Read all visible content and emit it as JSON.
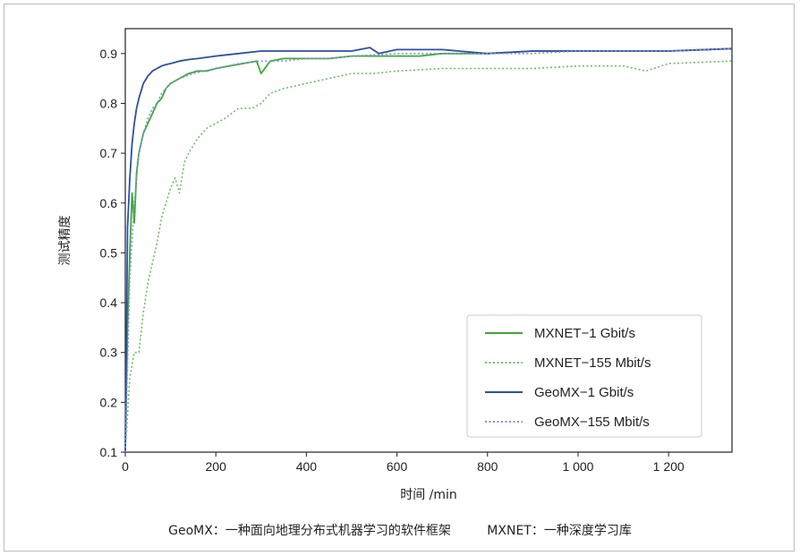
{
  "chart_data": {
    "type": "line",
    "xlabel": "时间 /min",
    "ylabel": "测试精度",
    "xlim": [
      0,
      1340
    ],
    "ylim": [
      0.1,
      0.95
    ],
    "xticks": [
      0,
      200,
      400,
      600,
      800,
      1000,
      1200
    ],
    "xtick_labels": [
      "0",
      "200",
      "400",
      "600",
      "800",
      "1 000",
      "1 200"
    ],
    "yticks": [
      0.1,
      0.2,
      0.3,
      0.4,
      0.5,
      0.6,
      0.7,
      0.8,
      0.9
    ],
    "ytick_labels": [
      "0.1",
      "0.2",
      "0.3",
      "0.4",
      "0.5",
      "0.6",
      "0.7",
      "0.8",
      "0.9"
    ],
    "grid": false,
    "legend_position": "lower-right",
    "series": [
      {
        "name": "MXNET−1 Gbit/s",
        "color": "#3aaa35",
        "style": "solid",
        "x": [
          0,
          5,
          10,
          15,
          20,
          25,
          30,
          40,
          50,
          60,
          70,
          80,
          90,
          100,
          120,
          140,
          160,
          180,
          200,
          230,
          260,
          290,
          300,
          320,
          350,
          400,
          450,
          500,
          550,
          600,
          650,
          700,
          750,
          800,
          900,
          1000,
          1100,
          1200,
          1340
        ],
        "y": [
          0.1,
          0.35,
          0.5,
          0.62,
          0.56,
          0.66,
          0.7,
          0.74,
          0.76,
          0.78,
          0.8,
          0.81,
          0.83,
          0.84,
          0.85,
          0.86,
          0.865,
          0.865,
          0.87,
          0.875,
          0.88,
          0.885,
          0.86,
          0.885,
          0.89,
          0.89,
          0.89,
          0.895,
          0.895,
          0.895,
          0.895,
          0.9,
          0.9,
          0.9,
          0.905,
          0.905,
          0.905,
          0.905,
          0.91
        ]
      },
      {
        "name": "MXNET−155 Mbit/s",
        "color": "#6cbf62",
        "style": "dotted",
        "x": [
          0,
          10,
          20,
          30,
          40,
          50,
          60,
          70,
          80,
          90,
          100,
          110,
          120,
          130,
          140,
          160,
          180,
          200,
          220,
          250,
          280,
          300,
          320,
          350,
          400,
          450,
          500,
          550,
          600,
          700,
          800,
          900,
          1000,
          1100,
          1150,
          1200,
          1340
        ],
        "y": [
          0.1,
          0.25,
          0.3,
          0.3,
          0.38,
          0.44,
          0.48,
          0.52,
          0.57,
          0.6,
          0.63,
          0.65,
          0.62,
          0.68,
          0.7,
          0.73,
          0.75,
          0.76,
          0.77,
          0.79,
          0.79,
          0.8,
          0.82,
          0.83,
          0.84,
          0.85,
          0.86,
          0.86,
          0.865,
          0.87,
          0.87,
          0.87,
          0.875,
          0.875,
          0.865,
          0.88,
          0.885
        ]
      },
      {
        "name": "GeoMX−1 Gbit/s",
        "color": "#2e4fa6",
        "style": "solid",
        "x": [
          0,
          5,
          10,
          15,
          20,
          25,
          30,
          40,
          50,
          60,
          70,
          80,
          90,
          100,
          120,
          140,
          160,
          200,
          250,
          300,
          350,
          400,
          450,
          500,
          540,
          560,
          600,
          700,
          800,
          900,
          1000,
          1100,
          1200,
          1340
        ],
        "y": [
          0.1,
          0.55,
          0.65,
          0.72,
          0.76,
          0.79,
          0.81,
          0.84,
          0.855,
          0.865,
          0.87,
          0.875,
          0.878,
          0.88,
          0.885,
          0.888,
          0.89,
          0.895,
          0.9,
          0.905,
          0.905,
          0.905,
          0.905,
          0.905,
          0.912,
          0.9,
          0.908,
          0.908,
          0.9,
          0.905,
          0.905,
          0.905,
          0.905,
          0.91
        ]
      },
      {
        "name": "GeoMX−155 Mbit/s",
        "color": "#8a8fd6",
        "style": "dotted",
        "x": [
          0,
          10,
          20,
          30,
          40,
          50,
          60,
          70,
          80,
          100,
          120,
          150,
          200,
          250,
          300,
          350,
          400,
          450,
          500,
          600,
          700,
          800,
          900,
          1000,
          1100,
          1200,
          1340
        ],
        "y": [
          0.1,
          0.45,
          0.6,
          0.7,
          0.74,
          0.77,
          0.79,
          0.8,
          0.82,
          0.84,
          0.85,
          0.86,
          0.87,
          0.88,
          0.885,
          0.885,
          0.89,
          0.89,
          0.895,
          0.9,
          0.9,
          0.9,
          0.9,
          0.905,
          0.905,
          0.905,
          0.91
        ]
      }
    ]
  },
  "caption": {
    "left": "GeoMX：一种面向地理分布式机器学习的软件框架",
    "right": "MXNET：一种深度学习库"
  }
}
